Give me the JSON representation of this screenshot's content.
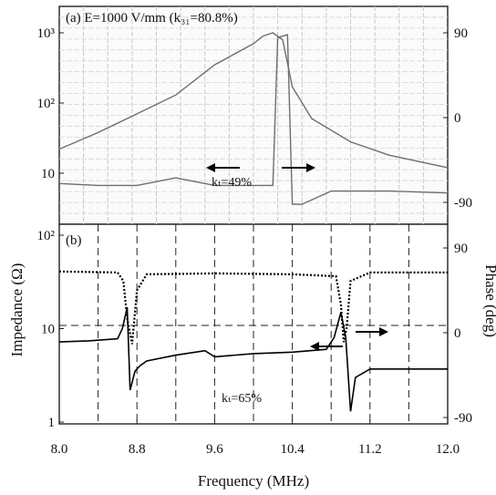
{
  "chart_data": [
    {
      "panel": "(a)",
      "type": "line",
      "title": "(a) E=1000 V/mm (k₃₁=80.8%)",
      "annotation": "kₜ=49%",
      "yaxis_left": {
        "scale": "log",
        "ticks": [
          "10³",
          "10²",
          "10"
        ],
        "tick_values": [
          1000,
          100,
          10
        ]
      },
      "yaxis_right": {
        "ticks": [
          "90",
          "0",
          "-90"
        ],
        "tick_values": [
          90,
          0,
          -90
        ]
      },
      "xlim": [
        8.0,
        12.0
      ],
      "grid": true,
      "series": [
        {
          "role": "impedance",
          "x": [
            8.0,
            8.4,
            8.8,
            9.2,
            9.6,
            10.0,
            10.1,
            10.2,
            10.3,
            10.4,
            10.6,
            11.0,
            11.4,
            12.0
          ],
          "y": [
            22,
            38,
            70,
            130,
            350,
            700,
            900,
            1000,
            800,
            170,
            60,
            28,
            18,
            12
          ]
        },
        {
          "role": "phase",
          "x": [
            8.0,
            8.4,
            8.8,
            9.2,
            9.6,
            10.0,
            10.2,
            10.25,
            10.35,
            10.4,
            10.5,
            10.8,
            11.4,
            12.0
          ],
          "y": [
            -70,
            -72,
            -72,
            -64,
            -72,
            -72,
            -72,
            85,
            88,
            -92,
            -92,
            -78,
            -78,
            -80
          ]
        }
      ]
    },
    {
      "panel": "(b)",
      "type": "line",
      "annotation": "kₜ=65%",
      "yaxis_left": {
        "scale": "log",
        "ticks": [
          "10²",
          "10",
          "1"
        ],
        "tick_values": [
          100,
          10,
          1
        ]
      },
      "yaxis_right": {
        "ticks": [
          "90",
          "0",
          "-90"
        ],
        "tick_values": [
          90,
          0,
          -90
        ]
      },
      "xlim": [
        8.0,
        12.0
      ],
      "xticks": [
        "8.0",
        "8.8",
        "9.6",
        "10.4",
        "11.2",
        "12.0"
      ],
      "xtick_values": [
        8.0,
        8.8,
        9.6,
        10.4,
        11.2,
        12.0
      ],
      "xlabel": "Frequency (MHz)",
      "grid": "dashed",
      "series": [
        {
          "role": "impedance",
          "style": "solid",
          "x": [
            8.0,
            8.3,
            8.6,
            8.65,
            8.7,
            8.73,
            8.78,
            8.83,
            8.9,
            9.2,
            9.5,
            9.6,
            10.0,
            10.4,
            10.75,
            10.83,
            10.9,
            10.95,
            11.0,
            11.05,
            11.2,
            12.0
          ],
          "y": [
            7.2,
            7.4,
            7.8,
            10,
            17,
            2.2,
            3.5,
            4.0,
            4.5,
            5.2,
            5.8,
            5.0,
            5.4,
            5.6,
            6.0,
            8,
            15,
            8,
            1.3,
            3.0,
            3.7,
            3.7
          ]
        },
        {
          "role": "phase",
          "style": "dotted",
          "x": [
            8.0,
            8.6,
            8.66,
            8.7,
            8.75,
            8.8,
            8.9,
            9.6,
            10.4,
            10.85,
            10.9,
            10.93,
            10.96,
            11.0,
            11.2,
            12.0
          ],
          "y": [
            65,
            64,
            55,
            15,
            -12,
            45,
            62,
            63,
            62,
            60,
            30,
            -10,
            5,
            55,
            64,
            64
          ]
        }
      ]
    }
  ],
  "shared": {
    "ylabel_left": "Impedance (Ω)",
    "ylabel_right": "Phase (deg)"
  }
}
